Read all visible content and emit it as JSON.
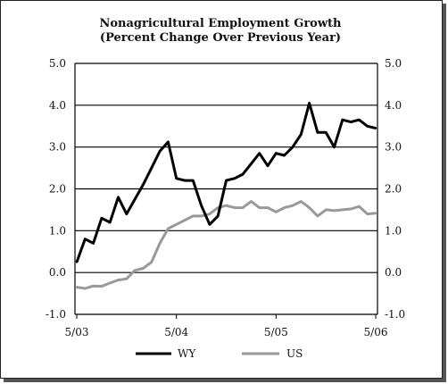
{
  "chart_data": {
    "type": "line",
    "title": "Nonagricultural Employment Growth",
    "subtitle": "(Percent Change Over Previous Year)",
    "xlabel": "",
    "ylabel": "",
    "ylim": [
      -1.0,
      5.0
    ],
    "y_ticks": [
      "5.0",
      "4.0",
      "3.0",
      "2.0",
      "1.0",
      "0.0",
      "-1.0"
    ],
    "x_ticks": [
      "5/03",
      "5/04",
      "5/05",
      "5/06"
    ],
    "grid": "horizontal",
    "legend_position": "bottom",
    "x": [
      "2003-05",
      "2003-06",
      "2003-07",
      "2003-08",
      "2003-09",
      "2003-10",
      "2003-11",
      "2003-12",
      "2004-01",
      "2004-02",
      "2004-03",
      "2004-04",
      "2004-05",
      "2004-06",
      "2004-07",
      "2004-08",
      "2004-09",
      "2004-10",
      "2004-11",
      "2004-12",
      "2005-01",
      "2005-02",
      "2005-03",
      "2005-04",
      "2005-05",
      "2005-06",
      "2005-07",
      "2005-08",
      "2005-09",
      "2005-10",
      "2005-11",
      "2005-12",
      "2006-01",
      "2006-02",
      "2006-03",
      "2006-04",
      "2006-05"
    ],
    "series": [
      {
        "name": "WY",
        "color": "#000000",
        "values": [
          0.25,
          0.8,
          0.7,
          1.3,
          1.2,
          1.8,
          1.4,
          1.75,
          2.1,
          2.5,
          2.9,
          3.12,
          2.25,
          2.2,
          2.2,
          1.6,
          1.15,
          1.35,
          2.2,
          2.25,
          2.35,
          2.6,
          2.85,
          2.55,
          2.85,
          2.8,
          3.0,
          3.3,
          4.05,
          3.35,
          3.35,
          3.0,
          3.65,
          3.6,
          3.65,
          3.5,
          3.45
        ]
      },
      {
        "name": "US",
        "color": "#999999",
        "values": [
          -0.35,
          -0.38,
          -0.32,
          -0.33,
          -0.25,
          -0.18,
          -0.15,
          0.05,
          0.1,
          0.25,
          0.7,
          1.05,
          1.15,
          1.25,
          1.35,
          1.35,
          1.4,
          1.55,
          1.6,
          1.55,
          1.55,
          1.7,
          1.55,
          1.55,
          1.45,
          1.55,
          1.6,
          1.7,
          1.55,
          1.35,
          1.5,
          1.48,
          1.5,
          1.52,
          1.58,
          1.4,
          1.42
        ]
      }
    ]
  }
}
